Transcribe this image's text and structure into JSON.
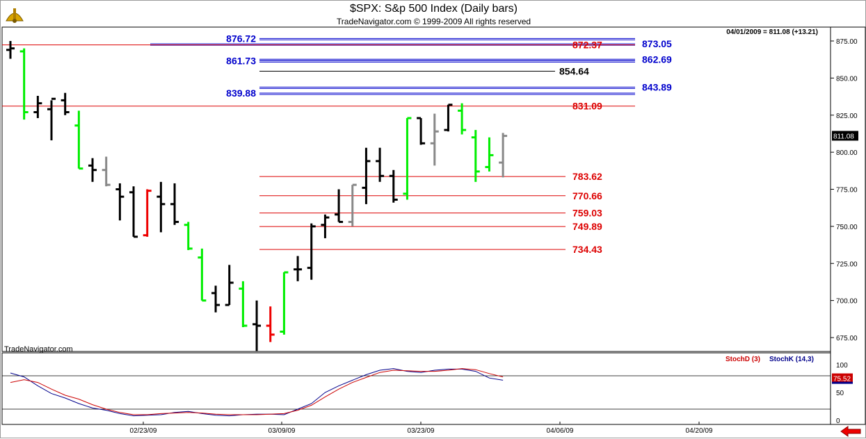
{
  "header": {
    "title": "$SPX:  S&p 500 Index  (Daily bars)",
    "subtitle": "TradeNavigator.com © 1999-2009 All rights reserved",
    "status": "04/01/2009 = 811.08 (+13.21)",
    "watermark": "TradeNavigator.com",
    "logo_icon": "sextant-icon"
  },
  "indicator": {
    "labels": [
      "StochD (3)",
      "StochK (14,3)"
    ],
    "stochd_color": "#cc0000",
    "stochk_color": "#00008b",
    "ticks": [
      "100",
      "50",
      "0"
    ],
    "current_value": "75.52",
    "levels": [
      80,
      20
    ]
  },
  "nav": {
    "arrow_icon": "arrow-left-icon"
  },
  "colors": {
    "up_bar": "#00ee00",
    "down_bar": "#ee0000",
    "neutral_bar": "#888888",
    "normal_bar": "#000000",
    "blue_level": "#0000cc",
    "red_level": "#dd0000",
    "last_price_bg": "#000000"
  },
  "chart_data": {
    "type": "ohlc",
    "title": "$SPX:  S&p 500 Index  (Daily bars)",
    "ylim": [
      660,
      885
    ],
    "y_ticks": [
      "875.00",
      "850.00",
      "825.00",
      "800.00",
      "775.00",
      "750.00",
      "725.00",
      "700.00",
      "675.00"
    ],
    "x_ticks": [
      "02/23/09",
      "03/09/09",
      "03/23/09",
      "04/06/09",
      "04/20/09"
    ],
    "last_price": "811.08",
    "bars": [
      {
        "date": "02/09",
        "o": 869,
        "h": 875,
        "l": 863,
        "c": 870,
        "color": "normal"
      },
      {
        "date": "02/10",
        "o": 868,
        "h": 870,
        "l": 822,
        "c": 827,
        "color": "up"
      },
      {
        "date": "02/11",
        "o": 827,
        "h": 838,
        "l": 823,
        "c": 833,
        "color": "normal"
      },
      {
        "date": "02/12",
        "o": 829,
        "h": 835,
        "l": 808,
        "c": 836,
        "color": "normal"
      },
      {
        "date": "02/13",
        "o": 835,
        "h": 840,
        "l": 825,
        "c": 827,
        "color": "normal"
      },
      {
        "date": "02/17",
        "o": 818,
        "h": 828,
        "l": 789,
        "c": 789,
        "color": "up"
      },
      {
        "date": "02/18",
        "o": 791,
        "h": 796,
        "l": 780,
        "c": 788,
        "color": "normal"
      },
      {
        "date": "02/19",
        "o": 788,
        "h": 797,
        "l": 777,
        "c": 778,
        "color": "neutral"
      },
      {
        "date": "02/20",
        "o": 775,
        "h": 779,
        "l": 754,
        "c": 770,
        "color": "normal"
      },
      {
        "date": "02/23",
        "o": 773,
        "h": 777,
        "l": 743,
        "c": 743,
        "color": "normal"
      },
      {
        "date": "02/24",
        "o": 744,
        "h": 775,
        "l": 743,
        "c": 774,
        "color": "down"
      },
      {
        "date": "02/25",
        "o": 770,
        "h": 780,
        "l": 746,
        "c": 765,
        "color": "normal"
      },
      {
        "date": "02/26",
        "o": 765,
        "h": 779,
        "l": 751,
        "c": 753,
        "color": "normal"
      },
      {
        "date": "02/27",
        "o": 751,
        "h": 753,
        "l": 734,
        "c": 735,
        "color": "up"
      },
      {
        "date": "03/02",
        "o": 729,
        "h": 735,
        "l": 700,
        "c": 700,
        "color": "up"
      },
      {
        "date": "03/03",
        "o": 705,
        "h": 710,
        "l": 692,
        "c": 697,
        "color": "normal"
      },
      {
        "date": "03/04",
        "o": 697,
        "h": 724,
        "l": 697,
        "c": 712,
        "color": "normal"
      },
      {
        "date": "03/05",
        "o": 708,
        "h": 713,
        "l": 682,
        "c": 683,
        "color": "up"
      },
      {
        "date": "03/06",
        "o": 684,
        "h": 700,
        "l": 666,
        "c": 683,
        "color": "normal"
      },
      {
        "date": "03/09",
        "o": 683,
        "h": 696,
        "l": 672,
        "c": 677,
        "color": "down"
      },
      {
        "date": "03/10",
        "o": 679,
        "h": 719,
        "l": 677,
        "c": 719,
        "color": "up"
      },
      {
        "date": "03/11",
        "o": 721,
        "h": 730,
        "l": 713,
        "c": 721,
        "color": "normal"
      },
      {
        "date": "03/12",
        "o": 722,
        "h": 752,
        "l": 714,
        "c": 750,
        "color": "normal"
      },
      {
        "date": "03/13",
        "o": 751,
        "h": 758,
        "l": 742,
        "c": 756,
        "color": "normal"
      },
      {
        "date": "03/16",
        "o": 758,
        "h": 775,
        "l": 753,
        "c": 753,
        "color": "normal"
      },
      {
        "date": "03/17",
        "o": 753,
        "h": 778,
        "l": 750,
        "c": 778,
        "color": "neutral"
      },
      {
        "date": "03/18",
        "o": 776,
        "h": 803,
        "l": 765,
        "c": 794,
        "color": "normal"
      },
      {
        "date": "03/19",
        "o": 794,
        "h": 803,
        "l": 780,
        "c": 784,
        "color": "normal"
      },
      {
        "date": "03/20",
        "o": 784,
        "h": 788,
        "l": 766,
        "c": 768,
        "color": "normal"
      },
      {
        "date": "03/23",
        "o": 772,
        "h": 823,
        "l": 768,
        "c": 823,
        "color": "up"
      },
      {
        "date": "03/24",
        "o": 823,
        "h": 823,
        "l": 805,
        "c": 806,
        "color": "normal"
      },
      {
        "date": "03/25",
        "o": 806,
        "h": 826,
        "l": 791,
        "c": 814,
        "color": "neutral"
      },
      {
        "date": "03/26",
        "o": 815,
        "h": 832,
        "l": 814,
        "c": 832,
        "color": "normal"
      },
      {
        "date": "03/27",
        "o": 828,
        "h": 833,
        "l": 812,
        "c": 815,
        "color": "up"
      },
      {
        "date": "03/30",
        "o": 810,
        "h": 815,
        "l": 780,
        "c": 787,
        "color": "up"
      },
      {
        "date": "03/31",
        "o": 790,
        "h": 810,
        "l": 787,
        "c": 798,
        "color": "up"
      },
      {
        "date": "04/01",
        "o": 793,
        "h": 813,
        "l": 783,
        "c": 811,
        "color": "neutral"
      }
    ],
    "levels": [
      {
        "value": 876.72,
        "label": "876.72",
        "color": "blue",
        "label_side": "left",
        "double": true
      },
      {
        "value": 873.05,
        "label": "873.05",
        "color": "blue",
        "label_side": "right",
        "double": true
      },
      {
        "value": 872.37,
        "label": "872.37",
        "color": "red",
        "label_side": "mid",
        "double": false
      },
      {
        "value": 862.69,
        "label": "862.69",
        "color": "blue",
        "label_side": "right",
        "double": true
      },
      {
        "value": 861.73,
        "label": "861.73",
        "color": "blue",
        "label_side": "left",
        "double": true
      },
      {
        "value": 854.64,
        "label": "854.64",
        "color": "black",
        "label_side": "mid",
        "double": false
      },
      {
        "value": 843.89,
        "label": "843.89",
        "color": "blue",
        "label_side": "right",
        "double": true
      },
      {
        "value": 839.88,
        "label": "839.88",
        "color": "blue",
        "label_side": "left",
        "double": true
      },
      {
        "value": 831.09,
        "label": "831.09",
        "color": "red",
        "label_side": "mid",
        "double": false
      },
      {
        "value": 783.62,
        "label": "783.62",
        "color": "red",
        "label_side": "mid",
        "double": false
      },
      {
        "value": 770.66,
        "label": "770.66",
        "color": "red",
        "label_side": "mid",
        "double": false
      },
      {
        "value": 759.03,
        "label": "759.03",
        "color": "red",
        "label_side": "mid",
        "double": false
      },
      {
        "value": 749.89,
        "label": "749.89",
        "color": "red",
        "label_side": "mid",
        "double": false
      },
      {
        "value": 734.43,
        "label": "734.43",
        "color": "red",
        "label_side": "mid",
        "double": false
      }
    ],
    "stoch_k": [
      85,
      78,
      62,
      48,
      40,
      30,
      22,
      18,
      12,
      8,
      9,
      10,
      14,
      16,
      12,
      9,
      8,
      10,
      11,
      11,
      10,
      20,
      30,
      50,
      62,
      72,
      82,
      90,
      93,
      88,
      86,
      90,
      92,
      92,
      88,
      76,
      72
    ],
    "stoch_d": [
      68,
      73,
      68,
      56,
      45,
      38,
      28,
      20,
      14,
      10,
      10,
      12,
      13,
      14,
      13,
      11,
      10,
      10,
      10,
      11,
      12,
      18,
      27,
      42,
      56,
      68,
      77,
      86,
      90,
      89,
      88,
      88,
      90,
      93,
      91,
      84,
      78
    ]
  }
}
